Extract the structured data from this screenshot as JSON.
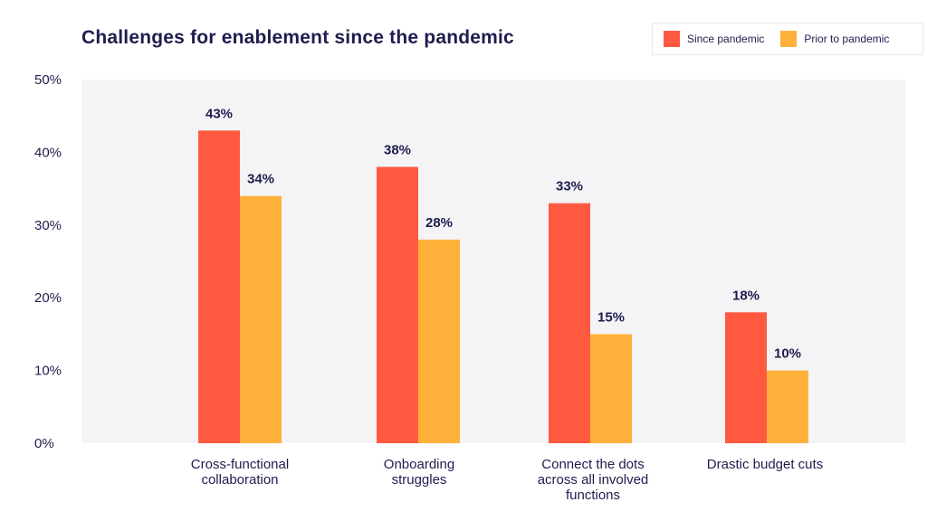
{
  "chart_data": {
    "type": "bar",
    "title": "Challenges for enablement since the pandemic",
    "categories": [
      "Cross-functional collaboration",
      "Onboarding struggles",
      "Connect the dots across all involved functions",
      "Drastic budget cuts"
    ],
    "series": [
      {
        "name": "Since pandemic",
        "values": [
          43,
          38,
          33,
          18
        ],
        "labels": [
          "43%",
          "38%",
          "33%",
          "18%"
        ],
        "color": "#ff5a40"
      },
      {
        "name": "Prior to pandemic",
        "values": [
          34,
          28,
          15,
          10
        ],
        "labels": [
          "34%",
          "28%",
          "15%",
          "10%"
        ],
        "color": "#ffb03b"
      }
    ],
    "yticks": [
      "0%",
      "10%",
      "20%",
      "30%",
      "40%",
      "50%"
    ],
    "ylim": [
      0,
      50
    ],
    "grid": false,
    "legend": "top-right",
    "plot_background": "#f4f4f6"
  }
}
